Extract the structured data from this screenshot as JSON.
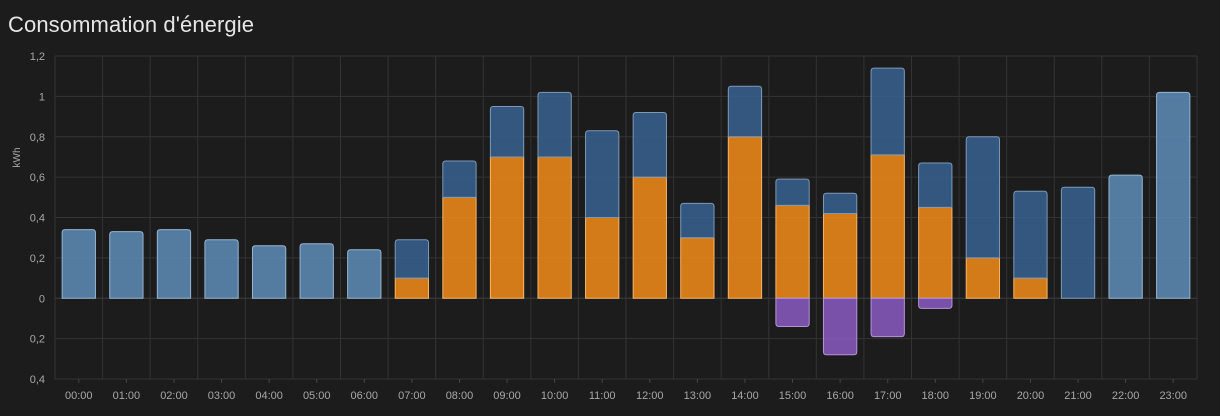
{
  "card": {
    "title": "Consommation d'énergie"
  },
  "chart_data": {
    "type": "bar",
    "title": "Consommation d'énergie",
    "xlabel": "",
    "ylabel": "kWh",
    "ylim": [
      -0.4,
      1.2
    ],
    "yticks": [
      {
        "value": 1.2,
        "label": "1,2"
      },
      {
        "value": 1.0,
        "label": "1"
      },
      {
        "value": 0.8,
        "label": "0,8"
      },
      {
        "value": 0.6,
        "label": "0,6"
      },
      {
        "value": 0.4,
        "label": "0,4"
      },
      {
        "value": 0.2,
        "label": "0,2"
      },
      {
        "value": 0.0,
        "label": "0"
      },
      {
        "value": -0.2,
        "label": "0,2"
      },
      {
        "value": -0.4,
        "label": "0,4"
      }
    ],
    "grid": true,
    "legend": "none",
    "categories": [
      "00:00",
      "01:00",
      "02:00",
      "03:00",
      "04:00",
      "05:00",
      "06:00",
      "07:00",
      "08:00",
      "09:00",
      "10:00",
      "11:00",
      "12:00",
      "13:00",
      "14:00",
      "15:00",
      "16:00",
      "17:00",
      "18:00",
      "19:00",
      "20:00",
      "21:00",
      "22:00",
      "23:00"
    ],
    "series": [
      {
        "color": "#5e8db8",
        "stacked": "positive",
        "values": [
          0.34,
          0.33,
          0.34,
          0.29,
          0.26,
          0.27,
          0.24,
          0,
          0,
          0,
          0,
          0,
          0,
          0,
          0,
          0,
          0,
          0,
          0,
          0,
          0,
          0,
          0.61,
          1.02
        ]
      },
      {
        "color": "#f28c18",
        "stacked": "positive",
        "values": [
          0,
          0,
          0,
          0,
          0,
          0,
          0,
          0.1,
          0.5,
          0.7,
          0.7,
          0.4,
          0.6,
          0.3,
          0.8,
          0.46,
          0.42,
          0.71,
          0.45,
          0.2,
          0.1,
          0,
          0,
          0
        ]
      },
      {
        "color": "#37628f",
        "stacked": "positive",
        "values": [
          0,
          0,
          0,
          0,
          0,
          0,
          0,
          0.19,
          0.18,
          0.25,
          0.32,
          0.43,
          0.32,
          0.17,
          0.25,
          0.13,
          0.1,
          0.43,
          0.22,
          0.6,
          0.43,
          0.55,
          0,
          0
        ]
      },
      {
        "color": "#8a5bc2",
        "stacked": "negative",
        "values": [
          0,
          0,
          0,
          0,
          0,
          0,
          0,
          0,
          0,
          0,
          0,
          0,
          0,
          0,
          0,
          0.14,
          0.28,
          0.19,
          0.05,
          0,
          0,
          0,
          0,
          0
        ]
      }
    ]
  }
}
